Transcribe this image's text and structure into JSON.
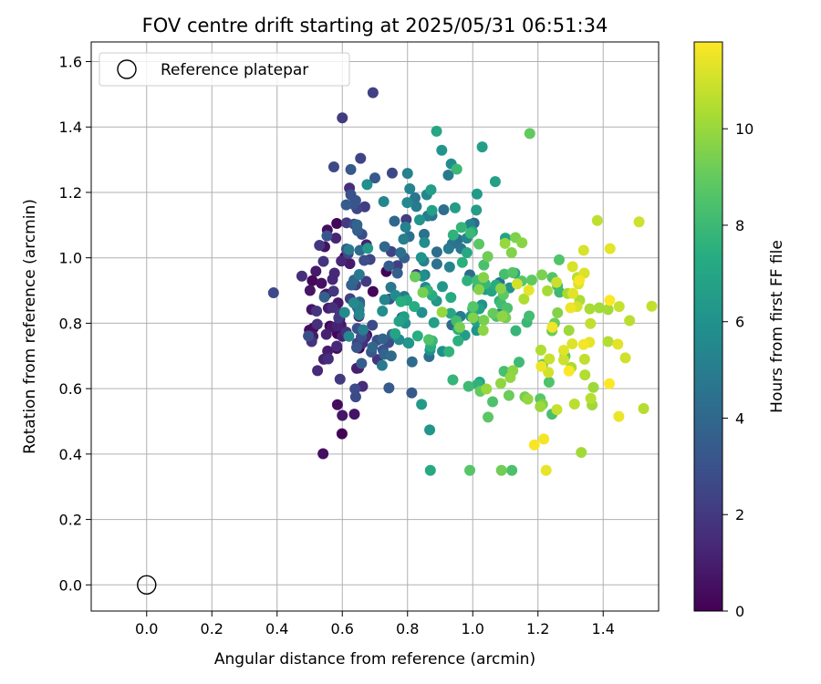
{
  "chart_data": {
    "type": "scatter",
    "title": "FOV centre drift starting at 2025/05/31 06:51:34",
    "xlabel": "Angular distance from reference (arcmin)",
    "ylabel": "Rotation from reference (arcmin)",
    "xlim": [
      -0.17,
      1.57
    ],
    "ylim": [
      -0.08,
      1.66
    ],
    "xticks": [
      "0.0",
      "0.2",
      "0.4",
      "0.6",
      "0.8",
      "1.0",
      "1.2",
      "1.4"
    ],
    "yticks": [
      "0.0",
      "0.2",
      "0.4",
      "0.6",
      "0.8",
      "1.0",
      "1.2",
      "1.4",
      "1.6"
    ],
    "grid": true,
    "legend": {
      "position": "top-left",
      "entries": [
        "Reference platepar"
      ]
    },
    "colorbar": {
      "label": "Hours from first FF file",
      "range": [
        0,
        11.8
      ],
      "ticks": [
        "0",
        "2",
        "4",
        "6",
        "8",
        "10"
      ],
      "colormap": "viridis"
    },
    "reference_point": {
      "x": 0.0,
      "y": 0.0
    },
    "series": [
      {
        "points": []
      }
    ]
  }
}
